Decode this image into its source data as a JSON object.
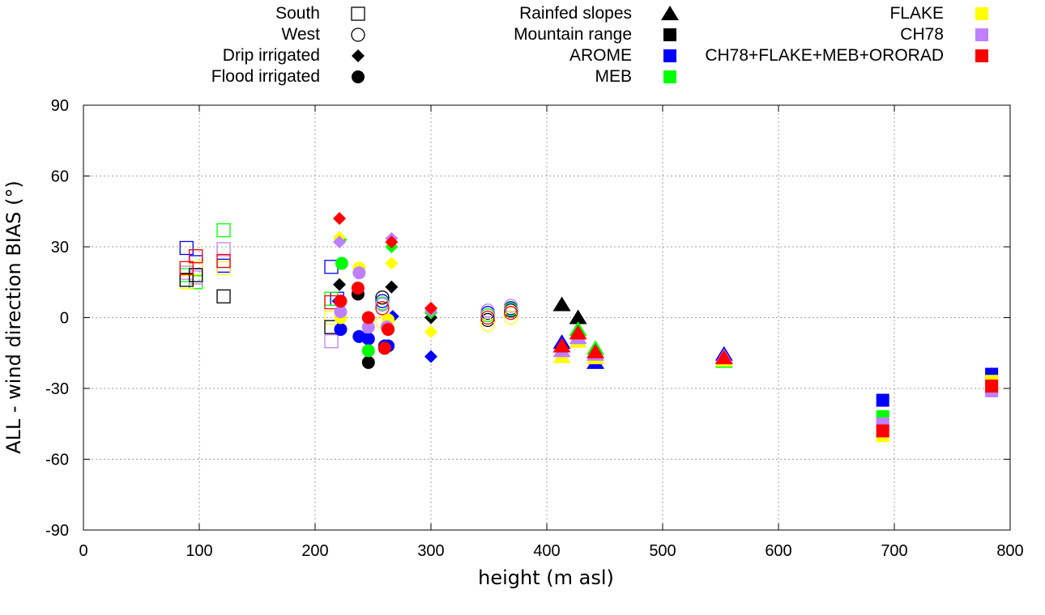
{
  "chart_data": {
    "type": "scatter",
    "title": "",
    "xlabel": "height (m asl)",
    "ylabel": "ALL - wind direction BIAS (°)",
    "xlim": [
      0,
      800
    ],
    "ylim": [
      -90,
      90
    ],
    "xticks": [
      "0",
      "100",
      "200",
      "300",
      "400",
      "500",
      "600",
      "700",
      "800"
    ],
    "yticks": [
      "90",
      "60",
      "30",
      "0",
      "-30",
      "-60",
      "-90"
    ],
    "grid": true,
    "legend_placement": "top",
    "shape_legend": [
      {
        "label": "South",
        "shape": "square-open"
      },
      {
        "label": "West",
        "shape": "circle-open"
      },
      {
        "label": "Drip irrigated",
        "shape": "diamond"
      },
      {
        "label": "Flood irrigated",
        "shape": "circle"
      },
      {
        "label": "Rainfed slopes",
        "shape": "triangle"
      },
      {
        "label": "Mountain range",
        "shape": "square"
      }
    ],
    "model_legend": [
      {
        "label": "AROME",
        "color": "#0000ff"
      },
      {
        "label": "MEB",
        "color": "#00ff00"
      },
      {
        "label": "FLAKE",
        "color": "#ffff00"
      },
      {
        "label": "CH78",
        "color": "#bf80ff"
      },
      {
        "label": "CH78+FLAKE+MEB+ORORAD",
        "color": "#ff0000"
      }
    ],
    "legend_markers_color": "#000000",
    "series": [
      {
        "name": "South-AROME",
        "shape": "square-open",
        "color": "#0000ff",
        "points": [
          [
            89,
            29.5
          ],
          [
            97,
            23.5
          ],
          [
            121,
            22
          ],
          [
            214,
            21.5
          ],
          [
            219,
            8
          ]
        ]
      },
      {
        "name": "South-MEB",
        "shape": "square-open",
        "color": "#00ff00",
        "points": [
          [
            89,
            18
          ],
          [
            97,
            15
          ],
          [
            121,
            37
          ],
          [
            214,
            8
          ]
        ]
      },
      {
        "name": "South-FLAKE",
        "shape": "square-open",
        "color": "#ffff00",
        "points": [
          [
            89,
            15
          ],
          [
            97,
            21
          ],
          [
            121,
            21
          ],
          [
            214,
            0
          ]
        ]
      },
      {
        "name": "South-CH78",
        "shape": "square-open",
        "color": "#bf80ff",
        "points": [
          [
            89,
            19
          ],
          [
            97,
            17
          ],
          [
            121,
            29
          ],
          [
            214,
            -10
          ]
        ]
      },
      {
        "name": "South-Mountain",
        "shape": "square-open",
        "color": "#000000",
        "points": [
          [
            89,
            16
          ],
          [
            97,
            18
          ],
          [
            121,
            9
          ],
          [
            214,
            -4
          ]
        ]
      },
      {
        "name": "South-CH78+FLAKE+MEB+ORORAD",
        "shape": "square-open",
        "color": "#ff0000",
        "points": [
          [
            89,
            21
          ],
          [
            97,
            26
          ],
          [
            121,
            24
          ],
          [
            214,
            6.5
          ]
        ]
      },
      {
        "name": "West-black",
        "shape": "circle-open",
        "color": "#000000",
        "points": [
          [
            258,
            8.5
          ],
          [
            349,
            -1
          ],
          [
            369,
            3
          ]
        ]
      },
      {
        "name": "West-AROME",
        "shape": "circle-open",
        "color": "#0000ff",
        "points": [
          [
            258,
            7
          ],
          [
            349,
            2
          ],
          [
            369,
            4
          ]
        ]
      },
      {
        "name": "West-MEB",
        "shape": "circle-open",
        "color": "#00ff00",
        "points": [
          [
            258,
            6
          ],
          [
            349,
            1
          ],
          [
            369,
            3.5
          ]
        ]
      },
      {
        "name": "West-CH78",
        "shape": "circle-open",
        "color": "#bf80ff",
        "points": [
          [
            258,
            5.5
          ],
          [
            349,
            3
          ],
          [
            369,
            5
          ]
        ]
      },
      {
        "name": "West-FLAKE",
        "shape": "circle-open",
        "color": "#ffff00",
        "points": [
          [
            258,
            -2
          ],
          [
            349,
            -3
          ],
          [
            369,
            0
          ]
        ]
      },
      {
        "name": "West-CH78+FLAKE+MEB+ORORAD",
        "shape": "circle-open",
        "color": "#ff0000",
        "points": [
          [
            258,
            4
          ],
          [
            349,
            0
          ],
          [
            369,
            2
          ]
        ]
      },
      {
        "name": "Drip-black",
        "shape": "diamond",
        "color": "#000000",
        "points": [
          [
            221,
            14
          ],
          [
            266,
            13
          ],
          [
            300,
            0
          ]
        ]
      },
      {
        "name": "Drip-AROME",
        "shape": "diamond",
        "color": "#0000ff",
        "points": [
          [
            220,
            7
          ],
          [
            267,
            0.5
          ],
          [
            300,
            -16.5
          ]
        ]
      },
      {
        "name": "Drip-MEB",
        "shape": "diamond",
        "color": "#00ff00",
        "points": [
          [
            222,
            33
          ],
          [
            266,
            30
          ],
          [
            300,
            2
          ]
        ]
      },
      {
        "name": "Drip-FLAKE",
        "shape": "diamond",
        "color": "#ffff00",
        "points": [
          [
            221,
            34
          ],
          [
            266,
            23
          ],
          [
            300,
            -6
          ]
        ]
      },
      {
        "name": "Drip-CH78",
        "shape": "diamond",
        "color": "#bf80ff",
        "points": [
          [
            221,
            32
          ],
          [
            266,
            33.5
          ],
          [
            300,
            3
          ]
        ]
      },
      {
        "name": "Drip-CH78+FLAKE+MEB+ORORAD",
        "shape": "diamond",
        "color": "#ff0000",
        "points": [
          [
            221,
            42
          ],
          [
            266,
            32
          ],
          [
            300,
            4
          ]
        ]
      },
      {
        "name": "Flood-black",
        "shape": "circle",
        "color": "#000000",
        "points": [
          [
            237,
            10
          ],
          [
            246,
            -19
          ]
        ]
      },
      {
        "name": "Flood-AROME",
        "shape": "circle",
        "color": "#0000ff",
        "points": [
          [
            222,
            -5
          ],
          [
            238,
            -8
          ],
          [
            246,
            -9
          ],
          [
            260,
            -12
          ],
          [
            263,
            -12
          ]
        ]
      },
      {
        "name": "Flood-MEB",
        "shape": "circle",
        "color": "#00ff00",
        "points": [
          [
            223,
            23
          ],
          [
            246,
            -14
          ],
          [
            260,
            -13
          ]
        ]
      },
      {
        "name": "Flood-FLAKE",
        "shape": "circle",
        "color": "#ffff00",
        "points": [
          [
            222,
            0
          ],
          [
            238,
            21
          ],
          [
            263,
            -1
          ]
        ]
      },
      {
        "name": "Flood-CH78",
        "shape": "circle",
        "color": "#bf80ff",
        "points": [
          [
            222,
            2.5
          ],
          [
            238,
            19
          ],
          [
            246,
            -4
          ],
          [
            262,
            -4
          ]
        ]
      },
      {
        "name": "Flood-CH78+FLAKE+MEB+ORORAD",
        "shape": "circle",
        "color": "#ff0000",
        "points": [
          [
            222,
            7
          ],
          [
            237,
            12.5
          ],
          [
            246,
            0
          ],
          [
            263,
            -5
          ],
          [
            260,
            -13
          ]
        ]
      },
      {
        "name": "Rainfed-black",
        "shape": "triangle",
        "color": "#000000",
        "points": [
          [
            413,
            5.5
          ],
          [
            427,
            0
          ]
        ]
      },
      {
        "name": "Rainfed-AROME",
        "shape": "triangle",
        "color": "#0000ff",
        "points": [
          [
            413,
            -10.5
          ],
          [
            442,
            -19
          ],
          [
            553,
            -15.5
          ]
        ]
      },
      {
        "name": "Rainfed-MEB",
        "shape": "triangle",
        "color": "#00ff00",
        "points": [
          [
            427,
            -5
          ],
          [
            442,
            -13
          ],
          [
            553,
            -18.5
          ]
        ]
      },
      {
        "name": "Rainfed-FLAKE",
        "shape": "triangle",
        "color": "#ffff00",
        "points": [
          [
            413,
            -16.5
          ],
          [
            427,
            -10
          ],
          [
            442,
            -17
          ],
          [
            553,
            -18
          ]
        ]
      },
      {
        "name": "Rainfed-CH78",
        "shape": "triangle",
        "color": "#bf80ff",
        "points": [
          [
            413,
            -14
          ],
          [
            427,
            -8.5
          ],
          [
            442,
            -15.5
          ],
          [
            553,
            -16.5
          ]
        ]
      },
      {
        "name": "Rainfed-CH78+FLAKE+MEB+ORORAD",
        "shape": "triangle",
        "color": "#ff0000",
        "points": [
          [
            413,
            -12
          ],
          [
            427,
            -6.5
          ],
          [
            442,
            -14.5
          ],
          [
            553,
            -17
          ]
        ]
      },
      {
        "name": "Mountain-AROME",
        "shape": "square",
        "color": "#0000ff",
        "points": [
          [
            690,
            -35
          ],
          [
            784,
            -24
          ]
        ]
      },
      {
        "name": "Mountain-MEB",
        "shape": "square",
        "color": "#00ff00",
        "points": [
          [
            690,
            -42
          ]
        ]
      },
      {
        "name": "Mountain-FLAKE",
        "shape": "square",
        "color": "#ffff00",
        "points": [
          [
            690,
            -50
          ],
          [
            784,
            -27
          ]
        ]
      },
      {
        "name": "Mountain-CH78",
        "shape": "square",
        "color": "#bf80ff",
        "points": [
          [
            690,
            -45
          ],
          [
            784,
            -31
          ]
        ]
      },
      {
        "name": "Mountain-CH78+FLAKE+MEB+ORORAD",
        "shape": "square",
        "color": "#ff0000",
        "points": [
          [
            690,
            -48
          ],
          [
            784,
            -29
          ]
        ]
      }
    ]
  }
}
